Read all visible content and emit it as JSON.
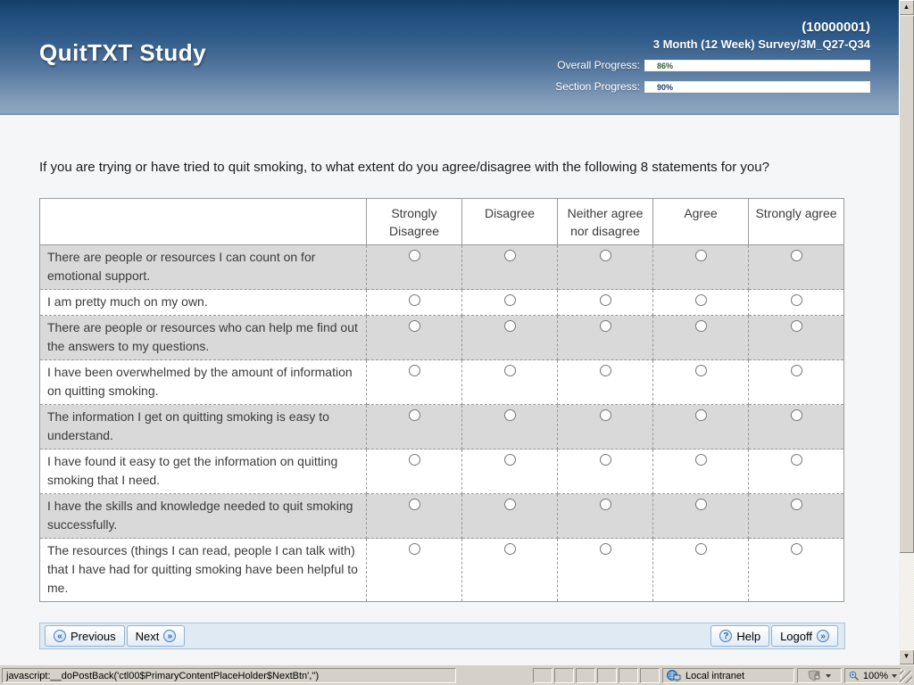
{
  "header": {
    "title": "QuitTXT Study",
    "participant_id": "(10000001)",
    "survey_label": "3 Month (12 Week) Survey/3M_Q27-Q34",
    "progress": [
      {
        "label": "Overall Progress:",
        "value": "86%",
        "percent": 86,
        "fill_color": "#92c983",
        "text_color": "#2f5f2f"
      },
      {
        "label": "Section Progress:",
        "value": "90%",
        "percent": 90,
        "fill_color": "#a9c5e8",
        "text_color": "#1d3f6e"
      }
    ]
  },
  "question": "If you are trying or have tried to quit smoking, to what extent do you agree/disagree with the following 8 statements for you?",
  "survey_table": {
    "columns": [
      "Strongly Disagree",
      "Disagree",
      "Neither agree nor disagree",
      "Agree",
      "Strongly agree"
    ],
    "statements": [
      "There are people or resources I can count on for emotional support.",
      "I am pretty much on my own.",
      "There are people or resources who can help me find out the answers to my questions.",
      "I have been overwhelmed by the amount of information on quitting smoking.",
      "The information I get on quitting smoking is easy to understand.",
      "I have found it easy to get the information on quitting smoking that I need.",
      "I have the skills and knowledge needed to quit smoking successfully.",
      "The resources (things I can read, people I can talk with) that I have had for quitting smoking have been helpful to me."
    ]
  },
  "nav": {
    "previous_label": "Previous",
    "next_label": "Next",
    "help_label": "Help",
    "logoff_label": "Logoff",
    "previous_icon": "«",
    "next_icon": "»",
    "help_icon": "?",
    "logoff_icon": "»"
  },
  "status_bar": {
    "status_text": "javascript:__doPostBack('ctl00$PrimaryContentPlaceHolder$NextBtn','')",
    "zone_label": "Local intranet",
    "zoom_label": "100%"
  }
}
